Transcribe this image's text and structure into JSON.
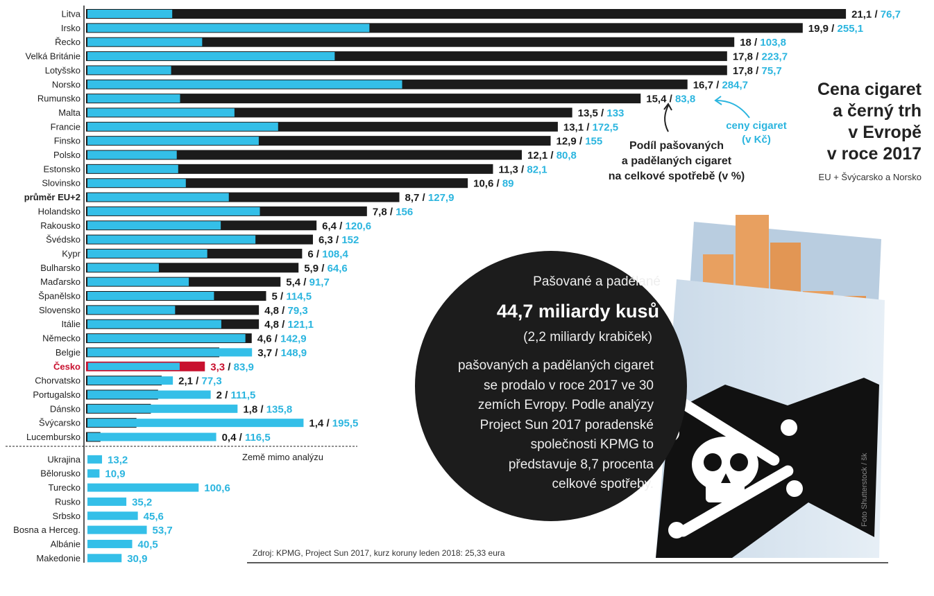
{
  "title": "Cena cigaret\na černý trh\nv Evropě\nv roce 2017",
  "subtitle": "EU + Švýcarsko a Norsko",
  "legend": {
    "share": "Podíl pašovaných\na padělaných cigaret\nna celkové spotřebě (v %)",
    "price": "ceny cigaret\n(v Kč)"
  },
  "outside_label": "Země mimo analýzu",
  "source": "Zdroj: KPMG, Project Sun 2017, kurz koruny leden 2018: 25,33 eura",
  "credit": "Foto Shutterstock / šk",
  "circle": {
    "intro": "Pašované a padělané",
    "big": "44,7 miliardy kusů",
    "sub": "(2,2 miliardy krabiček)",
    "body": "pašovaných a padělaných cigaret\nse prodalo v roce 2017 ve 30\nzemích Evropy. Podle analýzy\nProject Sun 2017 poradenské\nspolečnosti KPMG to\npředstavuje 8,7 procenta\ncelkové spotřeby."
  },
  "colors": {
    "share_bar": "#1b1b1b",
    "price_bar": "#34bfe8",
    "price_text": "#2bb5df",
    "highlight": "#c8102e"
  },
  "chart_data": {
    "type": "bar",
    "orientation": "horizontal",
    "series": [
      {
        "name": "Podíl pašovaných a padělaných cigaret na celkové spotřebě (v %)"
      },
      {
        "name": "ceny cigaret (v Kč)"
      }
    ],
    "rows": [
      {
        "country": "Litva",
        "share": "21,1",
        "price": "76,7"
      },
      {
        "country": "Irsko",
        "share": "19,9",
        "price": "255,1"
      },
      {
        "country": "Řecko",
        "share": "18",
        "price": "103,8"
      },
      {
        "country": "Velká Británie",
        "share": "17,8",
        "price": "223,7"
      },
      {
        "country": "Lotyšsko",
        "share": "17,8",
        "price": "75,7"
      },
      {
        "country": "Norsko",
        "share": "16,7",
        "price": "284,7"
      },
      {
        "country": "Rumunsko",
        "share": "15,4",
        "price": "83,8"
      },
      {
        "country": "Malta",
        "share": "13,5",
        "price": "133"
      },
      {
        "country": "Francie",
        "share": "13,1",
        "price": "172,5"
      },
      {
        "country": "Finsko",
        "share": "12,9",
        "price": "155"
      },
      {
        "country": "Polsko",
        "share": "12,1",
        "price": "80,8"
      },
      {
        "country": "Estonsko",
        "share": "11,3",
        "price": "82,1"
      },
      {
        "country": "Slovinsko",
        "share": "10,6",
        "price": "89"
      },
      {
        "country": "průměr EU+2",
        "share": "8,7",
        "price": "127,9",
        "style": "average"
      },
      {
        "country": "Holandsko",
        "share": "7,8",
        "price": "156"
      },
      {
        "country": "Rakousko",
        "share": "6,4",
        "price": "120,6"
      },
      {
        "country": "Švédsko",
        "share": "6,3",
        "price": "152"
      },
      {
        "country": "Kypr",
        "share": "6",
        "price": "108,4"
      },
      {
        "country": "Bulharsko",
        "share": "5,9",
        "price": "64,6"
      },
      {
        "country": "Maďarsko",
        "share": "5,4",
        "price": "91,7"
      },
      {
        "country": "Španělsko",
        "share": "5",
        "price": "114,5"
      },
      {
        "country": "Slovensko",
        "share": "4,8",
        "price": "79,3"
      },
      {
        "country": "Itálie",
        "share": "4,8",
        "price": "121,1"
      },
      {
        "country": "Německo",
        "share": "4,6",
        "price": "142,9"
      },
      {
        "country": "Belgie",
        "share": "3,7",
        "price": "148,9"
      },
      {
        "country": "Česko",
        "share": "3,3",
        "price": "83,9",
        "style": "highlight"
      },
      {
        "country": "Chorvatsko",
        "share": "2,1",
        "price": "77,3"
      },
      {
        "country": "Portugalsko",
        "share": "2",
        "price": "111,5"
      },
      {
        "country": "Dánsko",
        "share": "1,8",
        "price": "135,8"
      },
      {
        "country": "Švýcarsko",
        "share": "1,4",
        "price": "195,5"
      },
      {
        "country": "Lucembursko",
        "share": "0,4",
        "price": "116,5"
      },
      {
        "country": "Ukrajina",
        "price": "13,2"
      },
      {
        "country": "Bělorusko",
        "price": "10,9"
      },
      {
        "country": "Turecko",
        "price": "100,6"
      },
      {
        "country": "Rusko",
        "price": "35,2"
      },
      {
        "country": "Srbsko",
        "price": "45,6"
      },
      {
        "country": "Bosna a Herceg.",
        "price": "53,7"
      },
      {
        "country": "Albánie",
        "price": "40,5"
      },
      {
        "country": "Makedonie",
        "price": "30,9"
      }
    ]
  }
}
